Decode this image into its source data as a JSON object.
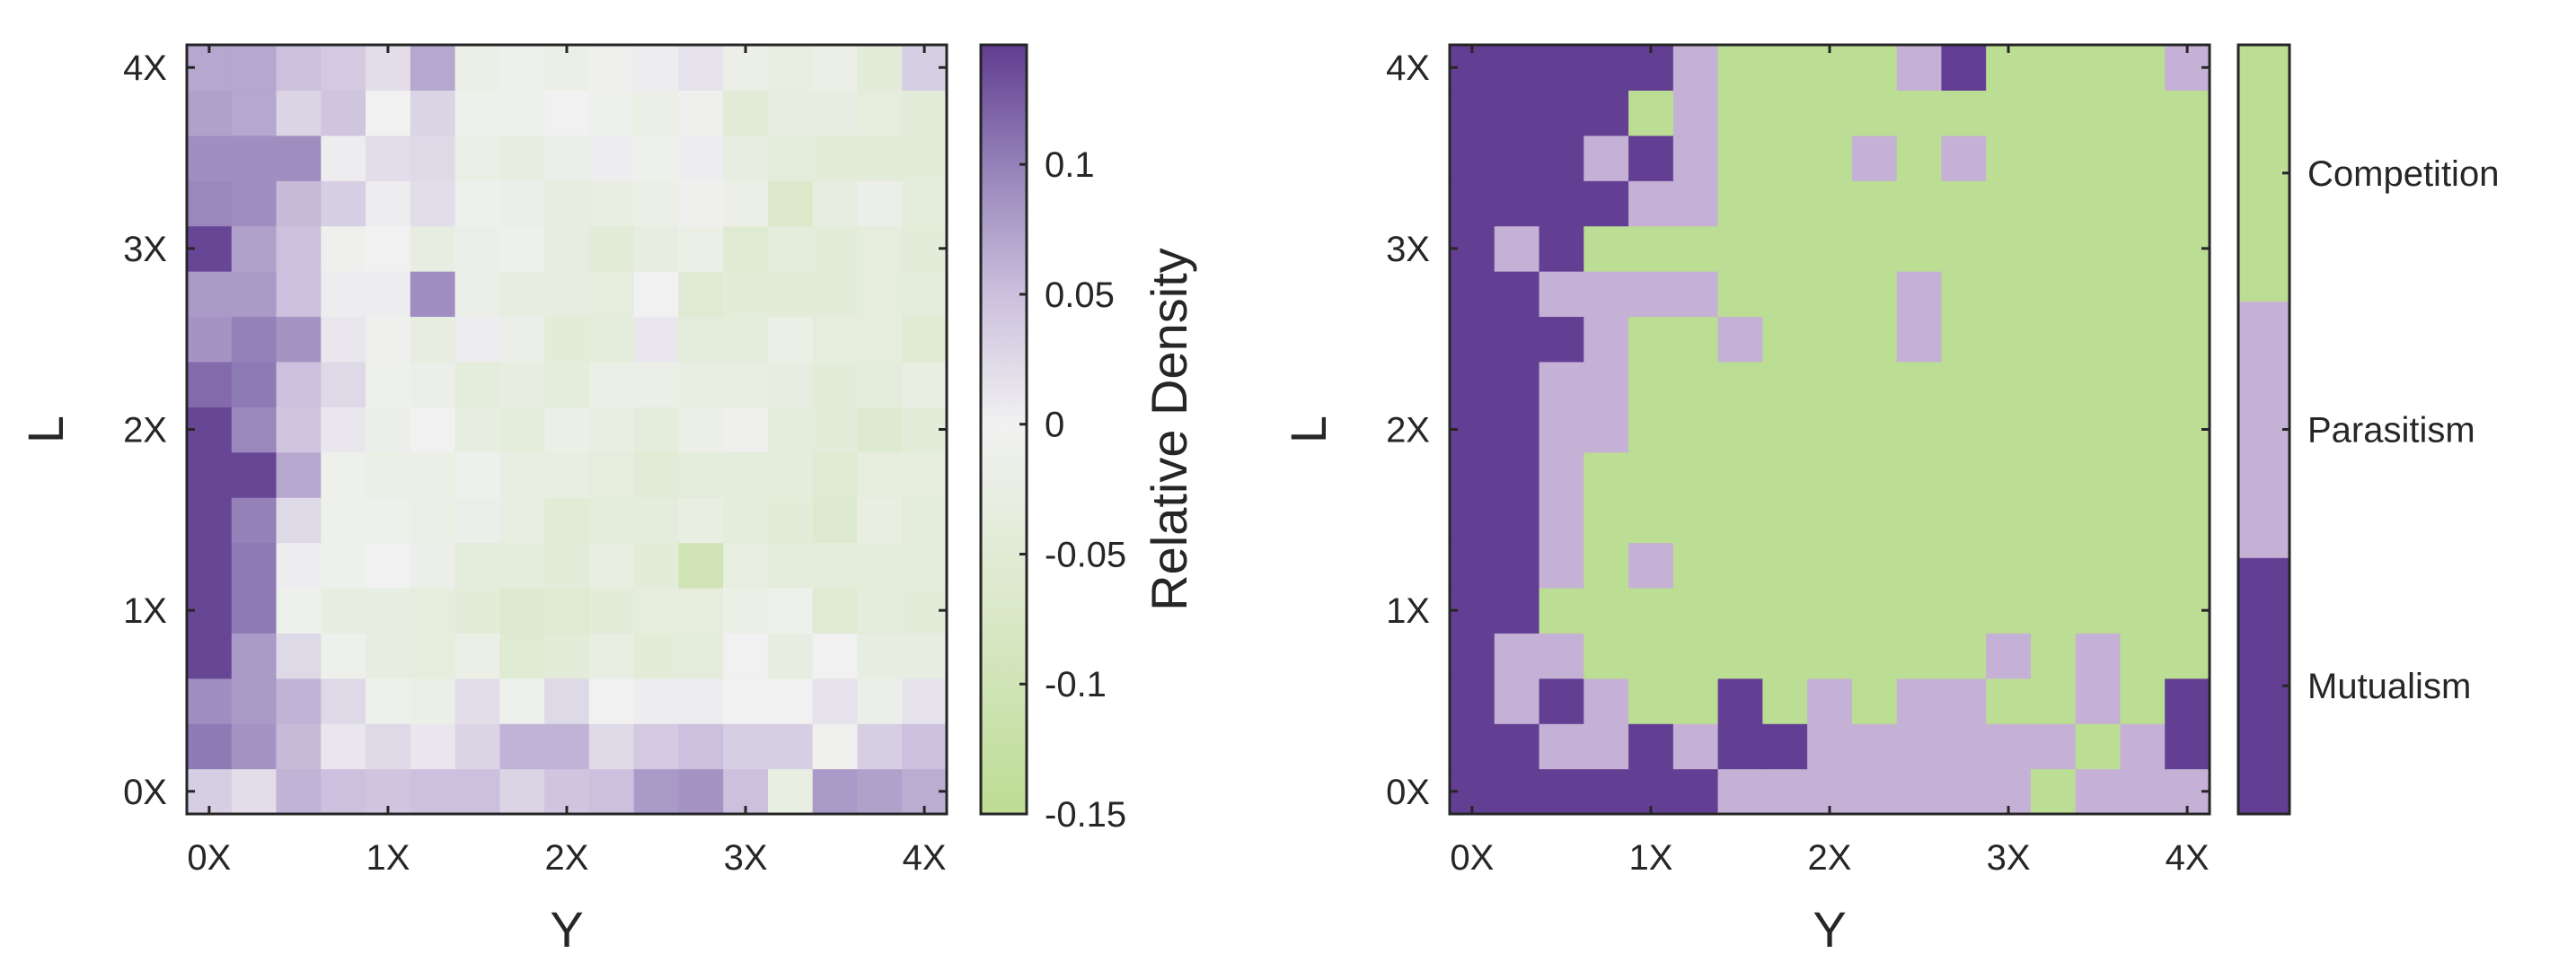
{
  "chart_data": [
    {
      "type": "heatmap",
      "xlabel": "Y",
      "ylabel": "L",
      "x_tick_labels": [
        "0X",
        "1X",
        "2X",
        "3X",
        "4X"
      ],
      "y_tick_labels": [
        "0X",
        "1X",
        "2X",
        "3X",
        "4X"
      ],
      "x": [
        0,
        0.25,
        0.5,
        0.75,
        1,
        1.25,
        1.5,
        1.75,
        2,
        2.25,
        2.5,
        2.75,
        3,
        3.25,
        3.5,
        3.75,
        4
      ],
      "y": [
        0,
        0.25,
        0.5,
        0.75,
        1,
        1.25,
        1.5,
        1.75,
        2,
        2.25,
        2.5,
        2.75,
        3,
        3.25,
        3.5,
        3.75,
        4
      ],
      "z": [
        [
          0.035,
          0.02,
          0.06,
          0.05,
          0.045,
          0.05,
          0.05,
          0.03,
          0.045,
          0.05,
          0.08,
          0.085,
          0.05,
          -0.025,
          0.08,
          0.075,
          0.065
        ],
        [
          0.105,
          0.085,
          0.055,
          0.01,
          0.025,
          0.01,
          0.03,
          0.06,
          0.06,
          0.025,
          0.04,
          0.05,
          0.035,
          0.035,
          -0.003,
          0.035,
          0.05
        ],
        [
          0.09,
          0.08,
          0.06,
          0.025,
          -0.01,
          -0.02,
          0.02,
          -0.01,
          0.025,
          0.0,
          0.005,
          0.005,
          0.0,
          0.0,
          0.015,
          -0.015,
          0.015
        ],
        [
          0.14,
          0.08,
          0.025,
          -0.01,
          -0.03,
          -0.035,
          -0.02,
          -0.055,
          -0.045,
          -0.025,
          -0.045,
          -0.04,
          0.0,
          -0.03,
          0.0,
          -0.03,
          -0.03
        ],
        [
          0.14,
          0.105,
          -0.01,
          -0.03,
          -0.03,
          -0.035,
          -0.045,
          -0.06,
          -0.055,
          -0.045,
          -0.035,
          -0.035,
          -0.02,
          -0.01,
          -0.055,
          -0.04,
          -0.045
        ],
        [
          0.14,
          0.105,
          0.005,
          -0.01,
          0.0,
          -0.015,
          -0.04,
          -0.04,
          -0.045,
          -0.025,
          -0.045,
          -0.1,
          -0.025,
          -0.04,
          -0.04,
          -0.04,
          -0.04
        ],
        [
          0.14,
          0.1,
          0.025,
          -0.01,
          -0.01,
          -0.02,
          -0.015,
          -0.025,
          -0.05,
          -0.04,
          -0.04,
          -0.025,
          -0.04,
          -0.045,
          -0.06,
          -0.025,
          -0.04
        ],
        [
          0.14,
          0.14,
          0.07,
          -0.01,
          -0.02,
          -0.02,
          -0.01,
          -0.025,
          -0.025,
          -0.035,
          -0.05,
          -0.04,
          -0.04,
          -0.04,
          -0.055,
          -0.035,
          -0.035
        ],
        [
          0.14,
          0.095,
          0.045,
          0.01,
          -0.015,
          0.0,
          -0.03,
          -0.04,
          -0.02,
          -0.025,
          -0.04,
          -0.02,
          -0.005,
          -0.04,
          -0.045,
          -0.06,
          -0.045
        ],
        [
          0.115,
          0.105,
          0.05,
          0.025,
          -0.01,
          -0.015,
          -0.04,
          -0.03,
          -0.04,
          -0.02,
          -0.02,
          -0.025,
          -0.025,
          -0.03,
          -0.045,
          -0.04,
          -0.025
        ],
        [
          0.085,
          0.1,
          0.085,
          0.01,
          -0.005,
          -0.03,
          0.005,
          -0.015,
          -0.045,
          -0.04,
          0.01,
          -0.04,
          -0.04,
          -0.02,
          -0.035,
          -0.035,
          -0.055
        ],
        [
          0.08,
          0.08,
          0.05,
          0.005,
          0.005,
          0.09,
          -0.015,
          -0.03,
          -0.03,
          -0.035,
          0.0,
          -0.055,
          -0.045,
          -0.045,
          -0.045,
          -0.035,
          -0.04
        ],
        [
          0.14,
          0.075,
          0.05,
          -0.005,
          0.0,
          -0.03,
          -0.015,
          -0.01,
          -0.03,
          -0.045,
          -0.03,
          -0.02,
          -0.055,
          -0.04,
          -0.045,
          -0.035,
          -0.045
        ],
        [
          0.095,
          0.09,
          0.055,
          0.035,
          0.005,
          0.02,
          -0.01,
          -0.015,
          -0.03,
          -0.025,
          -0.02,
          -0.005,
          -0.02,
          -0.07,
          -0.03,
          -0.015,
          -0.04
        ],
        [
          0.09,
          0.09,
          0.09,
          0.005,
          0.02,
          0.025,
          -0.02,
          -0.03,
          -0.015,
          0.005,
          -0.01,
          0.005,
          -0.03,
          -0.04,
          -0.045,
          -0.045,
          -0.045
        ],
        [
          0.075,
          0.07,
          0.03,
          0.045,
          0.0,
          0.03,
          -0.01,
          -0.01,
          0.0,
          -0.01,
          -0.02,
          -0.005,
          -0.05,
          -0.03,
          -0.03,
          -0.035,
          -0.045
        ],
        [
          0.07,
          0.07,
          0.05,
          0.04,
          0.02,
          0.07,
          -0.02,
          -0.01,
          -0.02,
          -0.005,
          0.005,
          0.015,
          -0.02,
          -0.025,
          -0.02,
          -0.045,
          0.035
        ]
      ],
      "colorbar": {
        "label": "Relative Density",
        "range": [
          -0.15,
          0.146
        ],
        "ticks": [
          -0.15,
          -0.1,
          -0.05,
          0,
          0.05,
          0.1
        ],
        "tick_labels": [
          "-0.15",
          "-0.1",
          "-0.05",
          "0",
          "0.05",
          "0.1"
        ],
        "colormap": [
          {
            "value": -0.15,
            "color": "#bddc93"
          },
          {
            "value": -0.075,
            "color": "#d9e8c7"
          },
          {
            "value": 0,
            "color": "#f1f1f1"
          },
          {
            "value": 0.05,
            "color": "#cbc0dd"
          },
          {
            "value": 0.1,
            "color": "#9481b8"
          },
          {
            "value": 0.146,
            "color": "#613d91"
          }
        ]
      }
    },
    {
      "type": "heatmap",
      "xlabel": "Y",
      "ylabel": "L",
      "x_tick_labels": [
        "0X",
        "1X",
        "2X",
        "3X",
        "4X"
      ],
      "y_tick_labels": [
        "0X",
        "1X",
        "2X",
        "3X",
        "4X"
      ],
      "x": [
        0,
        0.25,
        0.5,
        0.75,
        1,
        1.25,
        1.5,
        1.75,
        2,
        2.25,
        2.5,
        2.75,
        3,
        3.25,
        3.5,
        3.75,
        4
      ],
      "y": [
        0,
        0.25,
        0.5,
        0.75,
        1,
        1.25,
        1.5,
        1.75,
        2,
        2.25,
        2.5,
        2.75,
        3,
        3.25,
        3.5,
        3.75,
        4
      ],
      "categories": [
        "Mutualism",
        "Parasitism",
        "Competition"
      ],
      "category_colors": [
        "#633f93",
        "#c5b1d5",
        "#bcdd94"
      ],
      "z": [
        [
          0,
          0,
          0,
          0,
          0,
          0,
          1,
          1,
          1,
          1,
          1,
          1,
          1,
          2,
          1,
          1,
          1
        ],
        [
          0,
          0,
          1,
          1,
          0,
          1,
          0,
          0,
          1,
          1,
          1,
          1,
          1,
          1,
          2,
          1,
          0
        ],
        [
          0,
          1,
          0,
          1,
          2,
          2,
          0,
          2,
          1,
          2,
          1,
          1,
          2,
          2,
          1,
          2,
          0
        ],
        [
          0,
          1,
          1,
          2,
          2,
          2,
          2,
          2,
          2,
          2,
          2,
          2,
          1,
          2,
          1,
          2,
          2
        ],
        [
          0,
          0,
          2,
          2,
          2,
          2,
          2,
          2,
          2,
          2,
          2,
          2,
          2,
          2,
          2,
          2,
          2
        ],
        [
          0,
          0,
          1,
          2,
          1,
          2,
          2,
          2,
          2,
          2,
          2,
          2,
          2,
          2,
          2,
          2,
          2
        ],
        [
          0,
          0,
          1,
          2,
          2,
          2,
          2,
          2,
          2,
          2,
          2,
          2,
          2,
          2,
          2,
          2,
          2
        ],
        [
          0,
          0,
          1,
          2,
          2,
          2,
          2,
          2,
          2,
          2,
          2,
          2,
          2,
          2,
          2,
          2,
          2
        ],
        [
          0,
          0,
          1,
          1,
          2,
          2,
          2,
          2,
          2,
          2,
          2,
          2,
          2,
          2,
          2,
          2,
          2
        ],
        [
          0,
          0,
          1,
          1,
          2,
          2,
          2,
          2,
          2,
          2,
          2,
          2,
          2,
          2,
          2,
          2,
          2
        ],
        [
          0,
          0,
          0,
          1,
          2,
          2,
          1,
          2,
          2,
          2,
          1,
          2,
          2,
          2,
          2,
          2,
          2
        ],
        [
          0,
          0,
          1,
          1,
          1,
          1,
          2,
          2,
          2,
          2,
          1,
          2,
          2,
          2,
          2,
          2,
          2
        ],
        [
          0,
          1,
          0,
          2,
          2,
          2,
          2,
          2,
          2,
          2,
          2,
          2,
          2,
          2,
          2,
          2,
          2
        ],
        [
          0,
          0,
          0,
          0,
          1,
          1,
          2,
          2,
          2,
          2,
          2,
          2,
          2,
          2,
          2,
          2,
          2
        ],
        [
          0,
          0,
          0,
          1,
          0,
          1,
          2,
          2,
          2,
          1,
          2,
          1,
          2,
          2,
          2,
          2,
          2
        ],
        [
          0,
          0,
          0,
          0,
          2,
          1,
          2,
          2,
          2,
          2,
          2,
          2,
          2,
          2,
          2,
          2,
          2
        ],
        [
          0,
          0,
          0,
          0,
          0,
          1,
          2,
          2,
          2,
          2,
          1,
          0,
          2,
          2,
          2,
          2,
          1
        ]
      ]
    }
  ]
}
